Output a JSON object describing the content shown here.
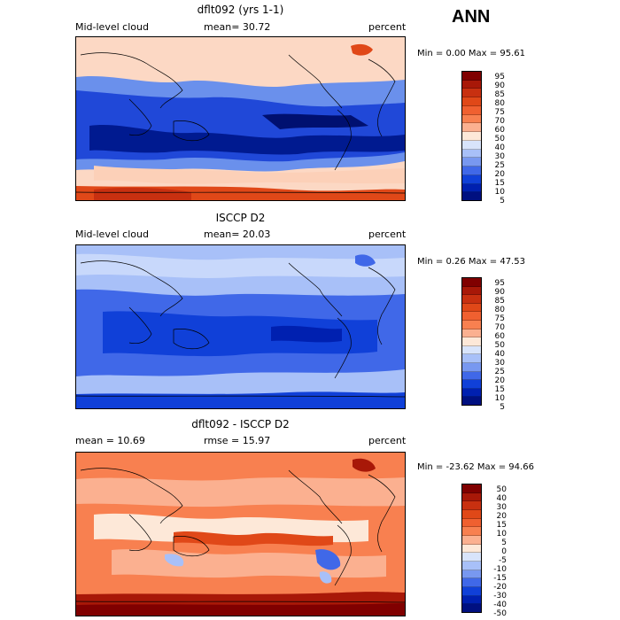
{
  "season": "ANN",
  "panels": [
    {
      "title": "dflt092 (yrs 1-1)",
      "left_label": "Mid-level cloud",
      "mid_label": "mean=  30.72",
      "units": "percent",
      "minmax": "Min =   0.00 Max =  95.61",
      "palette": "warm",
      "colorbar_labels": [
        "95",
        "90",
        "85",
        "80",
        "75",
        "70",
        "60",
        "50",
        "40",
        "30",
        "25",
        "20",
        "15",
        "10",
        "5"
      ]
    },
    {
      "title": "ISCCP D2",
      "left_label": "Mid-level cloud",
      "mid_label": "mean=  20.03",
      "units": "percent",
      "minmax": "Min =   0.26 Max =  47.53",
      "palette": "cool",
      "colorbar_labels": [
        "95",
        "90",
        "85",
        "80",
        "75",
        "70",
        "60",
        "50",
        "40",
        "30",
        "25",
        "20",
        "15",
        "10",
        "5"
      ]
    },
    {
      "title": "dflt092 - ISCCP D2",
      "left_label": "mean =  10.69",
      "mid_label": "rmse =  15.97",
      "units": "percent",
      "minmax": "Min = -23.62 Max =  94.66",
      "palette": "diff",
      "colorbar_labels": [
        "50",
        "40",
        "30",
        "20",
        "15",
        "10",
        "5",
        "0",
        "-5",
        "-10",
        "-15",
        "-20",
        "-30",
        "-40",
        "-50"
      ]
    }
  ],
  "colors": {
    "colorbar": [
      "#800000",
      "#a81808",
      "#c83010",
      "#e04818",
      "#f06030",
      "#f88050",
      "#fbb090",
      "#fde8d8",
      "#d8e4fb",
      "#a8c0f8",
      "#7898f0",
      "#4068e8",
      "#1040d8",
      "#0020b0",
      "#001080"
    ],
    "coastline": "#000000"
  }
}
